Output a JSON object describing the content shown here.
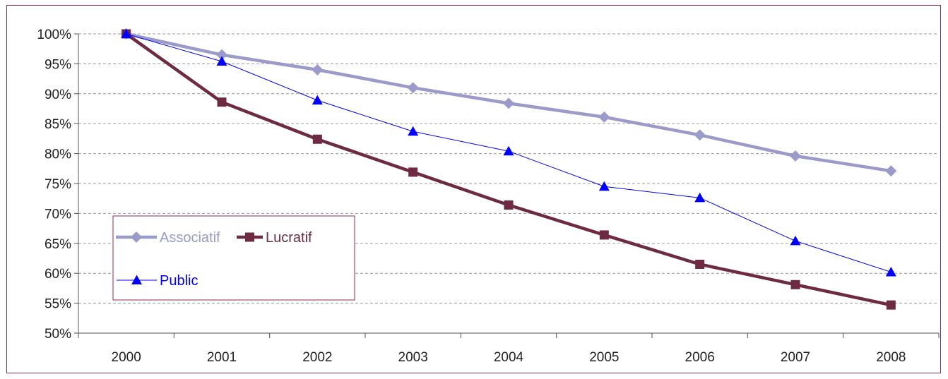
{
  "chart_data": {
    "type": "line",
    "title": "",
    "xlabel": "",
    "ylabel": "",
    "categories": [
      "2000",
      "2001",
      "2002",
      "2003",
      "2004",
      "2005",
      "2006",
      "2007",
      "2008"
    ],
    "y_ticks": [
      "50%",
      "55%",
      "60%",
      "65%",
      "70%",
      "75%",
      "80%",
      "85%",
      "90%",
      "95%",
      "100%"
    ],
    "ylim": [
      50,
      100
    ],
    "grid": "horizontal dashed",
    "legend_position": "left, inside plot",
    "series": [
      {
        "name": "Associatif",
        "color": "#9a9acb",
        "marker": "diamond",
        "values": [
          100,
          96.5,
          94,
          91,
          88.4,
          86.1,
          83.1,
          79.6,
          77.1
        ]
      },
      {
        "name": "Lucratif",
        "color": "#6e2a43",
        "marker": "square",
        "values": [
          100,
          88.6,
          82.4,
          76.9,
          71.4,
          66.4,
          61.5,
          58.1,
          54.7
        ]
      },
      {
        "name": "Public",
        "color": "#0000ff",
        "marker": "triangle",
        "values": [
          100,
          95.4,
          88.9,
          83.7,
          80.4,
          74.5,
          72.6,
          65.4,
          60.2
        ]
      }
    ]
  }
}
